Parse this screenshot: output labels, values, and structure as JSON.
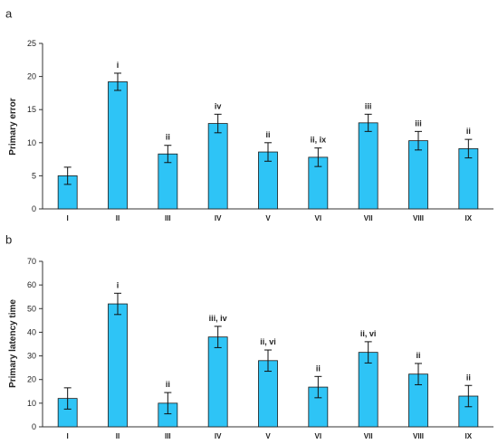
{
  "colors": {
    "bar": "#2ec4f6",
    "bar_stroke": "#1a1a1a",
    "axis": "#333333"
  },
  "chart_data": [
    {
      "type": "bar",
      "panel_label": "a",
      "ylabel": "Primary error",
      "ylim": [
        0,
        25
      ],
      "yticks": [
        0,
        5,
        10,
        15,
        20,
        25
      ],
      "categories": [
        "I",
        "II",
        "III",
        "IV",
        "V",
        "VI",
        "VII",
        "VIII",
        "IX"
      ],
      "values": [
        5.0,
        19.2,
        8.3,
        12.9,
        8.6,
        7.8,
        13.0,
        10.3,
        9.1
      ],
      "errors": [
        1.3,
        1.3,
        1.3,
        1.4,
        1.4,
        1.4,
        1.3,
        1.4,
        1.4
      ],
      "annotations": [
        "",
        "i",
        "ii",
        "iv",
        "ii",
        "ii, ix",
        "iii",
        "iii",
        "ii"
      ],
      "grid": false
    },
    {
      "type": "bar",
      "panel_label": "b",
      "ylabel": "Primary latency time",
      "ylim": [
        0,
        70
      ],
      "yticks": [
        0,
        10,
        20,
        30,
        40,
        50,
        60,
        70
      ],
      "categories": [
        "I",
        "II",
        "III",
        "IV",
        "V",
        "VI",
        "VII",
        "VIII",
        "IX"
      ],
      "values": [
        12.0,
        52.0,
        10.0,
        38.0,
        28.0,
        16.8,
        31.5,
        22.3,
        13.0
      ],
      "errors": [
        4.5,
        4.5,
        4.5,
        4.5,
        4.5,
        4.5,
        4.5,
        4.5,
        4.5
      ],
      "annotations": [
        "",
        "i",
        "ii",
        "iii, iv",
        "ii, vi",
        "ii",
        "ii, vi",
        "ii",
        "ii"
      ],
      "grid": false
    }
  ]
}
